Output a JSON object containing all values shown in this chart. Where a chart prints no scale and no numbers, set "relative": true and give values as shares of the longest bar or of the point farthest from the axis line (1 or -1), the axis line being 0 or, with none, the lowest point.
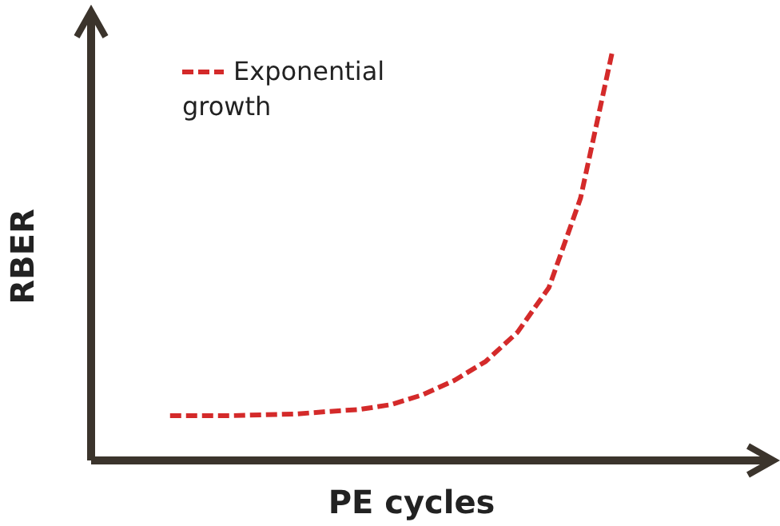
{
  "chart_data": {
    "type": "line",
    "relative": true,
    "xlabel": "PE cycles",
    "ylabel": "RBER",
    "categories": [
      null,
      null,
      null,
      null,
      null,
      null,
      null,
      null,
      null,
      null,
      null,
      null,
      null,
      null,
      null
    ],
    "series": [
      {
        "name": "Exponential growth",
        "color": "#d42a2a",
        "values": [
          0.11,
          0.11,
          0.11,
          0.112,
          0.114,
          0.12,
          0.125,
          0.137,
          0.161,
          0.196,
          0.243,
          0.314,
          0.424,
          0.643,
          1
        ]
      }
    ],
    "legend": "top left",
    "line_style": "dashed",
    "marker": "none",
    "grid": false
  }
}
